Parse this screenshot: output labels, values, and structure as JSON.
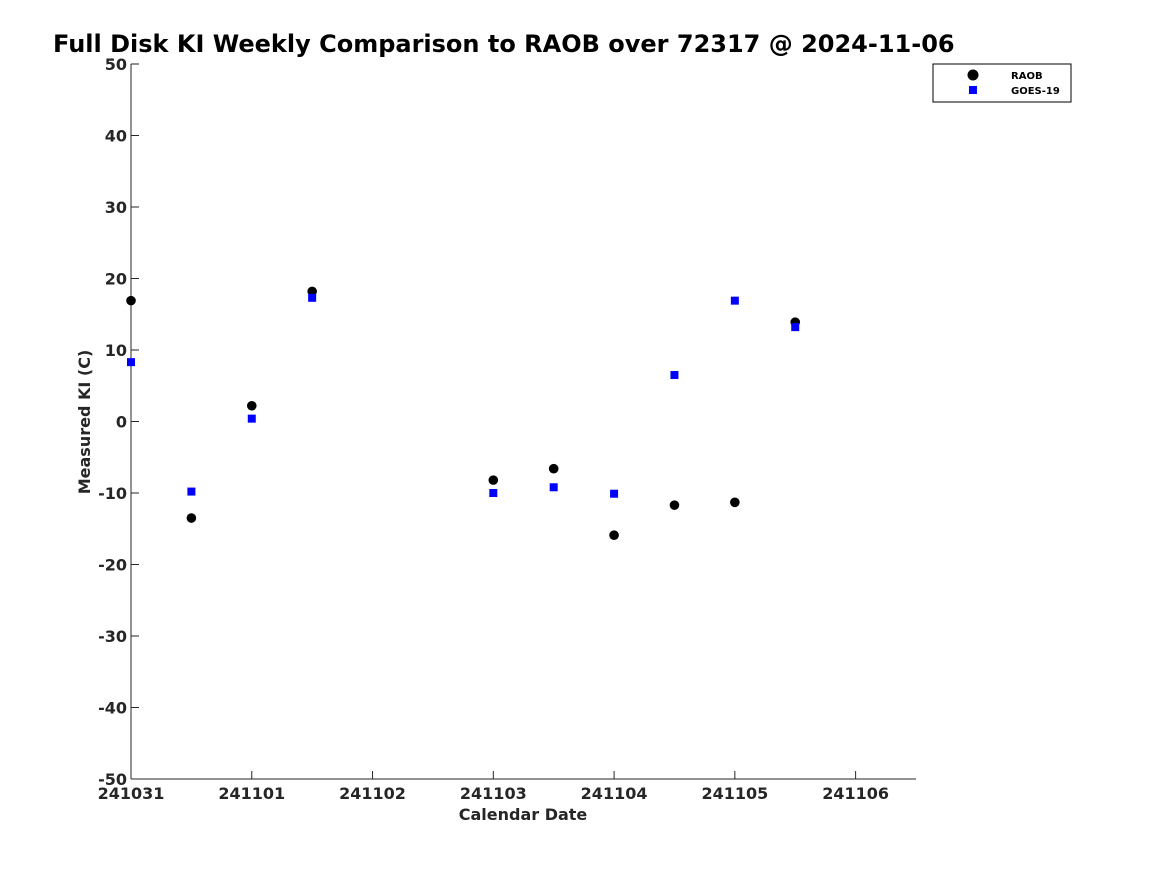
{
  "chart_data": {
    "type": "scatter",
    "title": "Full Disk KI Weekly Comparison to RAOB over 72317 @ 2024-11-06",
    "xlabel": "Calendar Date",
    "ylabel": "Measured KI (C)",
    "x_ticks": [
      "241031",
      "241101",
      "241102",
      "241103",
      "241104",
      "241105",
      "241106"
    ],
    "xlim": [
      "2024-10-31 00:00",
      "2024-11-06 12:00"
    ],
    "ylim": [
      -50,
      50
    ],
    "y_ticks": [
      "-50",
      "-40",
      "-30",
      "-20",
      "-10",
      "0",
      "10",
      "20",
      "30",
      "40",
      "50"
    ],
    "grid": false,
    "legend_position": "top-right",
    "series": [
      {
        "name": "RAOB",
        "marker": "circle",
        "color": "#000000",
        "points": [
          {
            "x": "2024-10-31 00:00",
            "y": 16.9
          },
          {
            "x": "2024-10-31 12:00",
            "y": -13.5
          },
          {
            "x": "2024-11-01 00:00",
            "y": 2.2
          },
          {
            "x": "2024-11-01 12:00",
            "y": 18.2
          },
          {
            "x": "2024-11-03 00:00",
            "y": -8.2
          },
          {
            "x": "2024-11-03 12:00",
            "y": -6.6
          },
          {
            "x": "2024-11-04 00:00",
            "y": -15.9
          },
          {
            "x": "2024-11-04 12:00",
            "y": -11.7
          },
          {
            "x": "2024-11-05 00:00",
            "y": -11.3
          },
          {
            "x": "2024-11-05 12:00",
            "y": 13.9
          }
        ]
      },
      {
        "name": "GOES-19",
        "marker": "square",
        "color": "#0000ff",
        "points": [
          {
            "x": "2024-10-31 00:00",
            "y": 8.3
          },
          {
            "x": "2024-10-31 12:00",
            "y": -9.8
          },
          {
            "x": "2024-11-01 00:00",
            "y": 0.4
          },
          {
            "x": "2024-11-01 12:00",
            "y": 17.3
          },
          {
            "x": "2024-11-03 00:00",
            "y": -10.0
          },
          {
            "x": "2024-11-03 12:00",
            "y": -9.2
          },
          {
            "x": "2024-11-04 00:00",
            "y": -10.1
          },
          {
            "x": "2024-11-04 12:00",
            "y": 6.5
          },
          {
            "x": "2024-11-05 00:00",
            "y": 16.9
          },
          {
            "x": "2024-11-05 12:00",
            "y": 13.2
          }
        ]
      }
    ]
  }
}
